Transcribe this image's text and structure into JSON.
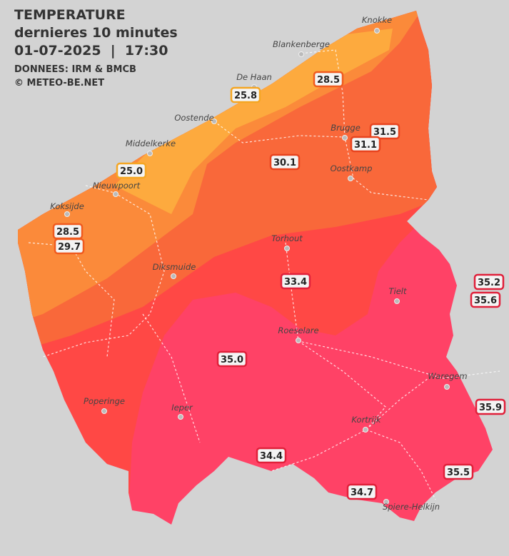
{
  "header": {
    "title": "TEMPERATURE",
    "subtitle": "dernieres 10 minutes",
    "datetime": "01-07-2025  |  17:30",
    "source": "DONNEES: IRM & BMCB",
    "copyright": "© METEO-BE.NET"
  },
  "cities": [
    "Knokke",
    "Blankenberge",
    "De Haan",
    "Oostende",
    "Brugge",
    "Middelkerke",
    "Oostkamp",
    "Nieuwpoort",
    "Koksijde",
    "Torhout",
    "Diksmuide",
    "Tielt",
    "Roeselare",
    "Waregem",
    "Poperinge",
    "Ieper",
    "Kortrijk",
    "Spiere-Helkijn"
  ],
  "readings": [
    {
      "value": "28.5",
      "border": "#f05a1e"
    },
    {
      "value": "25.8",
      "border": "#f5a623"
    },
    {
      "value": "31.5",
      "border": "#e8431e"
    },
    {
      "value": "31.1",
      "border": "#e8431e"
    },
    {
      "value": "30.1",
      "border": "#e8431e"
    },
    {
      "value": "25.0",
      "border": "#f5a623"
    },
    {
      "value": "28.5",
      "border": "#f05a1e"
    },
    {
      "value": "29.7",
      "border": "#f05a1e"
    },
    {
      "value": "33.4",
      "border": "#e0203a"
    },
    {
      "value": "35.2",
      "border": "#e0203a"
    },
    {
      "value": "35.6",
      "border": "#e0203a"
    },
    {
      "value": "35.0",
      "border": "#e0203a"
    },
    {
      "value": "35.9",
      "border": "#e0203a"
    },
    {
      "value": "34.4",
      "border": "#e0203a"
    },
    {
      "value": "35.5",
      "border": "#e0203a"
    },
    {
      "value": "34.7",
      "border": "#e0203a"
    }
  ]
}
